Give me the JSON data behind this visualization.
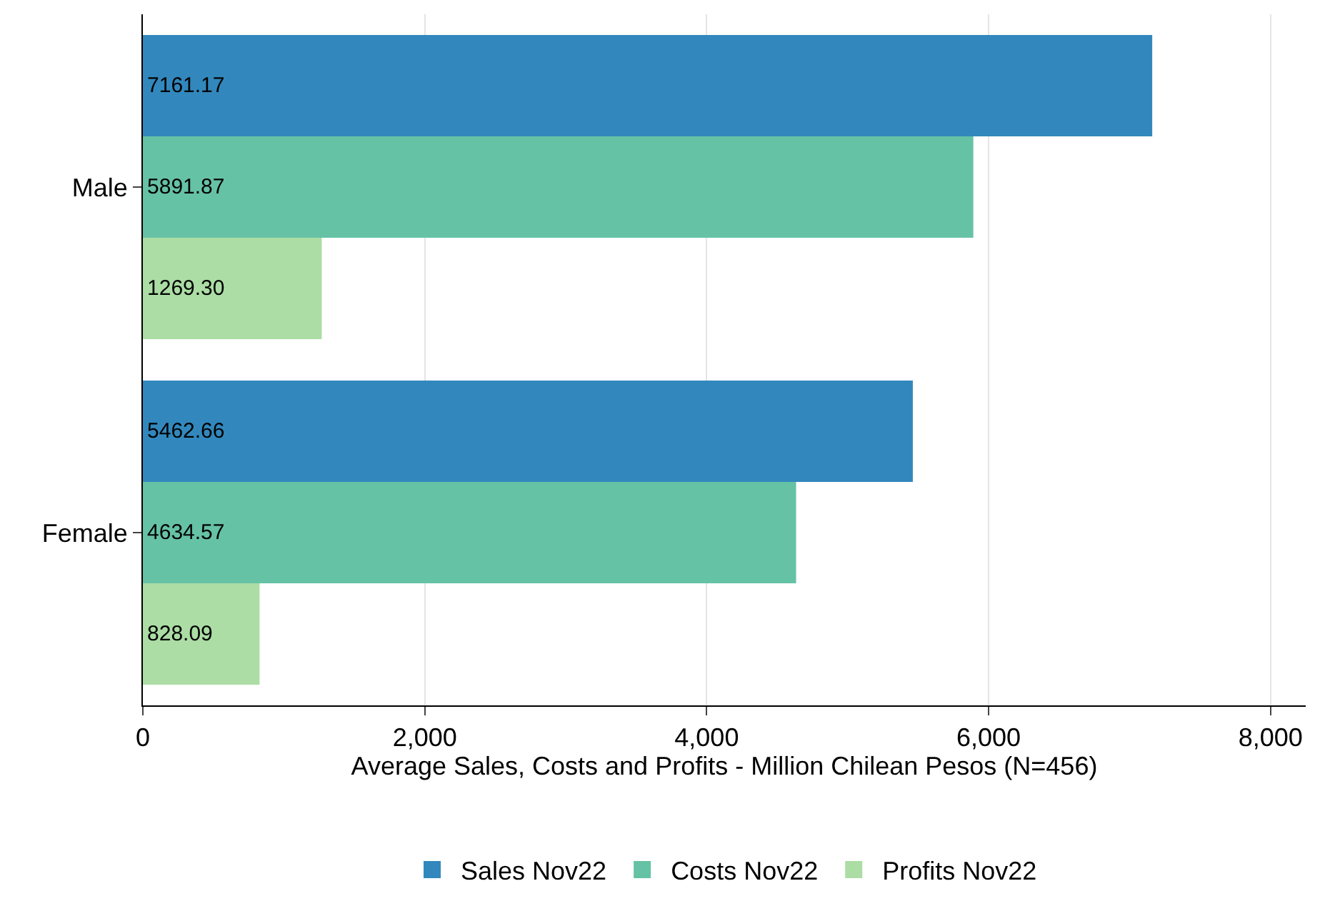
{
  "chart_data": {
    "type": "bar",
    "orientation": "horizontal",
    "xlabel": "Average Sales, Costs and Profits - Million Chilean Pesos (N=456)",
    "categories": [
      "Male",
      "Female"
    ],
    "series": [
      {
        "name": "Sales Nov22",
        "color": "#3288bd",
        "values": [
          7161.17,
          5462.66
        ],
        "value_labels": [
          "7161.17",
          "5462.66"
        ]
      },
      {
        "name": "Costs Nov22",
        "color": "#66c2a5",
        "values": [
          5891.87,
          4634.57
        ],
        "value_labels": [
          "5891.87",
          "4634.57"
        ]
      },
      {
        "name": "Profits Nov22",
        "color": "#abdda4",
        "values": [
          1269.3,
          828.09
        ],
        "value_labels": [
          "1269.30",
          "828.09"
        ]
      }
    ],
    "xlim": [
      0,
      8250
    ],
    "xticks": [
      {
        "value": 0,
        "label": "0"
      },
      {
        "value": 2000,
        "label": "2,000"
      },
      {
        "value": 4000,
        "label": "4,000"
      },
      {
        "value": 6000,
        "label": "6,000"
      },
      {
        "value": 8000,
        "label": "8,000"
      }
    ],
    "grid": "x",
    "legend": "bottom"
  }
}
